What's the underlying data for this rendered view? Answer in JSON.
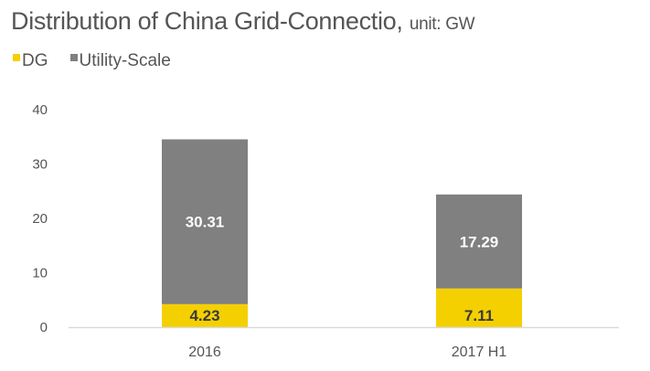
{
  "chart_data": {
    "type": "bar",
    "stacked": true,
    "title": "Distribution of China Grid-Connectio,",
    "subtitle": "unit: GW",
    "xlabel": "",
    "ylabel": "",
    "categories": [
      "2016",
      "2017 H1"
    ],
    "series": [
      {
        "name": "DG",
        "color": "#F5D000",
        "label_color": "#3a3a3a",
        "values": [
          4.23,
          7.11
        ]
      },
      {
        "name": "Utility-Scale",
        "color": "#808080",
        "label_color": "#ffffff",
        "values": [
          30.31,
          17.29
        ]
      }
    ],
    "ylim": [
      0,
      40
    ],
    "yticks": [
      "0",
      "10",
      "20",
      "30",
      "40"
    ],
    "grid": false,
    "legend_position": "top-left"
  }
}
